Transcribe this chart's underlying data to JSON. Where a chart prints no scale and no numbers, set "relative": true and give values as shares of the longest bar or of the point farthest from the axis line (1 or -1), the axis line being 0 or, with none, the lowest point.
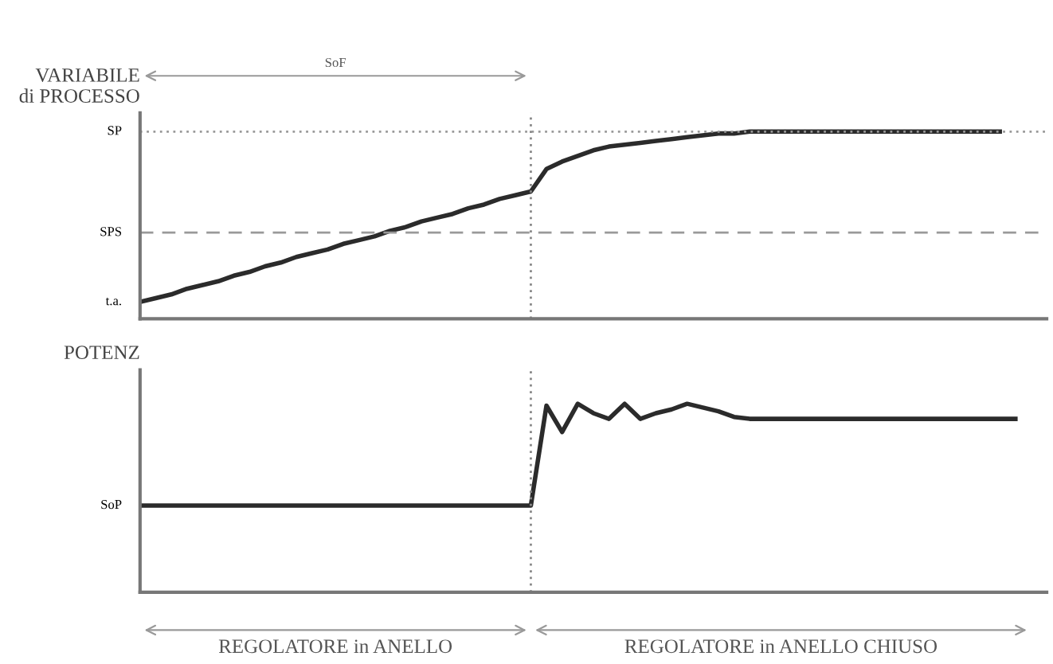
{
  "chart_data": [
    {
      "type": "line",
      "relative": true,
      "ylabel": "VARIABILE\ndi PROCESSO",
      "categories": [
        null,
        null,
        null,
        null,
        null,
        null,
        null,
        null,
        null,
        null,
        null,
        null,
        null,
        null,
        null,
        null,
        null,
        null,
        null,
        null,
        null,
        null,
        null,
        null,
        null,
        null,
        null,
        null,
        null,
        null,
        null,
        null,
        null,
        null,
        null,
        null,
        null,
        null,
        null,
        null,
        null,
        null,
        null,
        null,
        null,
        null,
        null,
        null,
        null,
        null,
        null,
        null,
        null,
        null,
        null,
        null,
        null,
        null,
        null
      ],
      "series": [
        {
          "color": "#2b2b2b",
          "values": [
            0.09,
            0.11,
            0.13,
            0.16,
            0.18,
            0.2,
            0.23,
            0.25,
            0.28,
            0.3,
            0.33,
            0.35,
            0.37,
            0.4,
            0.42,
            0.44,
            0.47,
            0.49,
            0.52,
            0.54,
            0.56,
            0.59,
            0.61,
            0.64,
            0.66,
            0.68,
            0.8,
            0.84,
            0.87,
            0.9,
            0.92,
            0.93,
            0.94,
            0.95,
            0.96,
            0.97,
            0.98,
            0.99,
            0.99,
            1,
            1,
            1,
            1,
            1,
            1,
            1,
            1,
            1,
            1,
            1,
            1,
            1,
            1,
            1,
            1,
            1,
            null,
            null,
            null
          ]
        }
      ],
      "ref_lines": [
        {
          "axis": "y",
          "value": 1,
          "label": "SP",
          "color": "#999999",
          "line_style": "dotted"
        },
        {
          "axis": "y",
          "value": 0.46,
          "label": "SPS",
          "color": "#999999",
          "line_style": "dashed"
        }
      ],
      "annotations": [
        "t.a.",
        "SoF"
      ]
    },
    {
      "type": "line",
      "relative": true,
      "ylabel": "POTENZ",
      "categories": [
        null,
        null,
        null,
        null,
        null,
        null,
        null,
        null,
        null,
        null,
        null,
        null,
        null,
        null,
        null,
        null,
        null,
        null,
        null,
        null,
        null,
        null,
        null,
        null,
        null,
        null,
        null,
        null,
        null,
        null,
        null,
        null,
        null,
        null,
        null,
        null,
        null,
        null,
        null,
        null,
        null,
        null,
        null,
        null,
        null,
        null,
        null,
        null,
        null,
        null,
        null,
        null,
        null,
        null,
        null,
        null,
        null,
        null,
        null
      ],
      "series": [
        {
          "color": "#2b2b2b",
          "values": [
            0.46,
            0.46,
            0.46,
            0.46,
            0.46,
            0.46,
            0.46,
            0.46,
            0.46,
            0.46,
            0.46,
            0.46,
            0.46,
            0.46,
            0.46,
            0.46,
            0.46,
            0.46,
            0.46,
            0.46,
            0.46,
            0.46,
            0.46,
            0.46,
            0.46,
            0.46,
            0.99,
            0.85,
            1,
            0.95,
            0.92,
            1,
            0.92,
            0.95,
            0.97,
            1,
            0.98,
            0.96,
            0.93,
            0.92,
            0.92,
            0.92,
            0.92,
            0.92,
            0.92,
            0.92,
            0.92,
            0.92,
            0.92,
            0.92,
            0.92,
            0.92,
            0.92,
            0.92,
            0.92,
            0.92,
            0.92,
            null,
            null
          ]
        }
      ],
      "annotations": [
        "SoP",
        "REGOLATORE in ANELLO",
        "REGOLATORE in ANELLO CHIUSO"
      ]
    }
  ]
}
